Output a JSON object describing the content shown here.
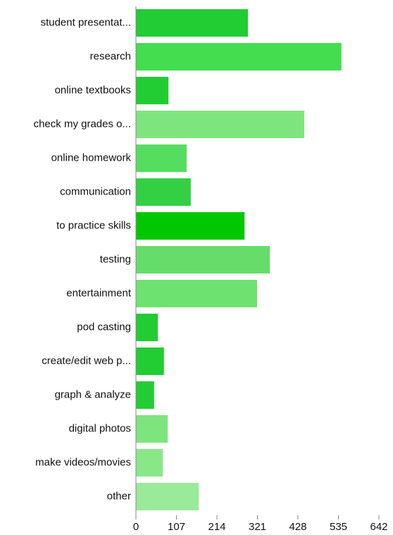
{
  "chart_data": {
    "type": "hbar",
    "categories": [
      "student presentat...",
      "research",
      "online textbooks",
      "check my grades o...",
      "online homework",
      "communication",
      "to practice skills",
      "testing",
      "entertainment",
      "pod casting",
      "create/edit web p...",
      "graph & analyze",
      "digital photos",
      "make videos/movies",
      "other"
    ],
    "values": [
      296,
      543,
      86,
      445,
      134,
      145,
      287,
      354,
      320,
      58,
      74,
      48,
      84,
      71,
      166
    ],
    "colors": [
      "#22cc33",
      "#44dd4f",
      "#22cc33",
      "#7ee57e",
      "#55dd60",
      "#33d044",
      "#00c800",
      "#66dd6a",
      "#6ee270",
      "#22cc33",
      "#22cc33",
      "#22cc33",
      "#7ee57e",
      "#88e888",
      "#99ea99"
    ],
    "xlim": [
      0,
      642
    ],
    "xticks": [
      0,
      107,
      214,
      321,
      428,
      535,
      642
    ]
  }
}
